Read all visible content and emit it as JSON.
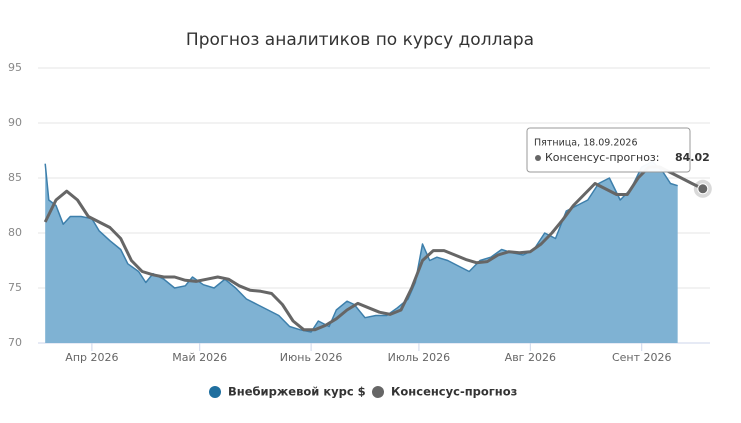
{
  "chart_data": {
    "type": "area-line",
    "title": "Прогноз аналитиков по курсу доллара",
    "ylim": [
      70,
      95
    ],
    "yticks": [
      70,
      75,
      80,
      85,
      90,
      95
    ],
    "grid": true,
    "xlim": [
      -2,
      185
    ],
    "xticks": [
      {
        "value": 13,
        "label": "Апр 2026"
      },
      {
        "value": 43,
        "label": "Май 2026"
      },
      {
        "value": 74,
        "label": "Июнь 2026"
      },
      {
        "value": 104,
        "label": "Июль 2026"
      },
      {
        "value": 135,
        "label": "Авг 2026"
      },
      {
        "value": 166,
        "label": "Сент 2026"
      }
    ],
    "series": [
      {
        "name": "Внебиржевой курс $",
        "color": "#1f6f9f",
        "fill": "#7fb2d3",
        "line": "#3d7fab",
        "x": [
          0,
          1,
          3,
          5,
          7,
          10,
          13,
          15,
          18,
          21,
          23,
          26,
          28,
          30,
          33,
          36,
          39,
          41,
          44,
          47,
          50,
          53,
          56,
          59,
          62,
          65,
          68,
          71,
          74,
          76,
          79,
          81,
          84,
          86,
          89,
          92,
          95,
          98,
          101,
          103,
          105,
          107,
          109,
          112,
          115,
          118,
          121,
          124,
          127,
          130,
          133,
          136,
          139,
          142,
          145,
          148,
          151,
          154,
          157,
          160,
          163,
          166,
          169,
          172,
          174,
          176
        ],
        "values": [
          86.3,
          83,
          82.5,
          80.8,
          81.5,
          81.5,
          81.3,
          80.2,
          79.3,
          78.5,
          77.2,
          76.5,
          75.5,
          76.3,
          75.8,
          75,
          75.2,
          76,
          75.3,
          75,
          75.8,
          75,
          74,
          73.5,
          73,
          72.5,
          71.5,
          71.2,
          71,
          72,
          71.5,
          73,
          73.8,
          73.5,
          72.3,
          72.5,
          72.5,
          73.2,
          74,
          75.5,
          79,
          77.5,
          77.8,
          77.5,
          77,
          76.5,
          77.5,
          77.8,
          78.5,
          78.2,
          78,
          78.5,
          80,
          79.5,
          82,
          82.5,
          83,
          84.5,
          85,
          83,
          84,
          86,
          86.5,
          85.5,
          84.5,
          84.3
        ]
      },
      {
        "name": "Консенсус-прогноз",
        "color": "#666666",
        "x": [
          0,
          3,
          6,
          9,
          12,
          15,
          18,
          21,
          24,
          27,
          30,
          33,
          36,
          39,
          42,
          45,
          48,
          51,
          54,
          57,
          60,
          63,
          66,
          69,
          72,
          75,
          78,
          81,
          84,
          87,
          90,
          93,
          96,
          99,
          102,
          105,
          108,
          111,
          114,
          117,
          120,
          123,
          126,
          129,
          132,
          135,
          138,
          141,
          144,
          147,
          150,
          153,
          156,
          159,
          162,
          165,
          168,
          171,
          174,
          177,
          180,
          183
        ],
        "values": [
          81,
          83,
          83.8,
          83,
          81.5,
          81,
          80.5,
          79.5,
          77.5,
          76.5,
          76.2,
          76,
          76,
          75.7,
          75.6,
          75.8,
          76,
          75.8,
          75.2,
          74.8,
          74.7,
          74.5,
          73.5,
          72,
          71.2,
          71.2,
          71.6,
          72.2,
          73,
          73.6,
          73.2,
          72.8,
          72.6,
          73,
          75,
          77.5,
          78.4,
          78.4,
          78,
          77.6,
          77.3,
          77.4,
          78,
          78.3,
          78.2,
          78.3,
          79,
          80,
          81.2,
          82.5,
          83.5,
          84.5,
          84,
          83.5,
          83.5,
          85,
          86,
          86,
          85.5,
          85,
          84.5,
          84.02
        ]
      }
    ],
    "tooltip": {
      "title": "Пятница, 18.09.2026",
      "label": "Консенсус-прогноз:"
    }
  }
}
